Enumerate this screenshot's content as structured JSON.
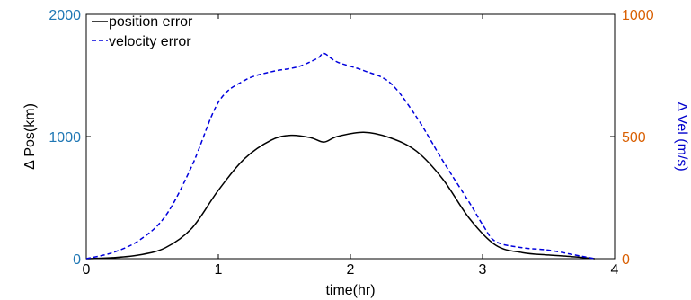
{
  "chart_data": {
    "type": "line",
    "title": "",
    "xlabel": "time(hr)",
    "ylabel_left": "Δ Pos(km)",
    "ylabel_right": "Δ Vel (m/s)",
    "xlim": [
      0,
      4
    ],
    "ylim_left": [
      0,
      2000
    ],
    "ylim_right": [
      0,
      1000
    ],
    "x_ticks": [
      "0",
      "1",
      "2",
      "3",
      "4"
    ],
    "y_left_ticks": [
      "0",
      "1000",
      "2000"
    ],
    "y_right_ticks": [
      "0",
      "500",
      "1000"
    ],
    "grid": false,
    "legend_position": "top-left",
    "colors": {
      "left_axis": "#1f77b4",
      "right_axis": "#d95f02",
      "right_label": "#0000cc",
      "position_series": "#000000",
      "velocity_series": "#0000dd"
    },
    "series": [
      {
        "name": "position error",
        "axis": "left",
        "style": "solid",
        "x": [
          0,
          0.2,
          0.4,
          0.6,
          0.8,
          1.0,
          1.2,
          1.4,
          1.55,
          1.7,
          1.8,
          1.9,
          2.1,
          2.3,
          2.5,
          2.7,
          2.9,
          3.1,
          3.3,
          3.5,
          3.7,
          3.85
        ],
        "values": [
          0,
          8,
          30,
          90,
          250,
          560,
          820,
          970,
          1010,
          990,
          955,
          1000,
          1035,
          990,
          880,
          650,
          330,
          110,
          50,
          30,
          15,
          0
        ]
      },
      {
        "name": "velocity error",
        "axis": "right",
        "style": "dashed",
        "x": [
          0,
          0.2,
          0.4,
          0.6,
          0.8,
          1.0,
          1.2,
          1.4,
          1.6,
          1.75,
          1.8,
          1.9,
          2.1,
          2.3,
          2.5,
          2.7,
          2.9,
          3.0,
          3.1,
          3.3,
          3.5,
          3.7,
          3.85
        ],
        "values": [
          0,
          25,
          75,
          175,
          380,
          640,
          730,
          765,
          785,
          820,
          840,
          805,
          770,
          720,
          580,
          400,
          230,
          140,
          70,
          45,
          35,
          15,
          0
        ]
      }
    ]
  }
}
